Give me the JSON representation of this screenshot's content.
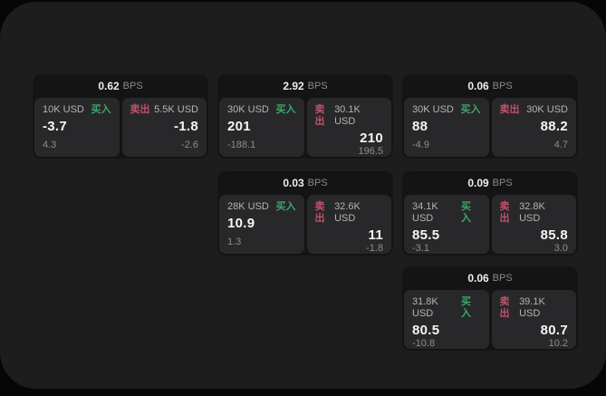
{
  "colors": {
    "buy-green": "#3fa56b",
    "sell-red": "#c25069"
  },
  "cards": [
    {
      "bps_value": "0.62",
      "bps_label": "BPS",
      "buy": {
        "amount": "10K USD",
        "tag": "买入",
        "value": "-3.7",
        "sub": "4.3"
      },
      "sell": {
        "tag": "卖出",
        "amount": "5.5K USD",
        "value": "-1.8",
        "sub": "-2.6"
      }
    },
    {
      "bps_value": "2.92",
      "bps_label": "BPS",
      "buy": {
        "amount": "30K USD",
        "tag": "买入",
        "value": "201",
        "sub": "-188.1"
      },
      "sell": {
        "tag": "卖出",
        "amount": "30.1K USD",
        "value": "210",
        "sub": "196.5"
      }
    },
    {
      "bps_value": "0.06",
      "bps_label": "BPS",
      "buy": {
        "amount": "30K USD",
        "tag": "买入",
        "value": "88",
        "sub": "-4.9"
      },
      "sell": {
        "tag": "卖出",
        "amount": "30K USD",
        "value": "88.2",
        "sub": "4.7"
      }
    },
    {
      "bps_value": "0.03",
      "bps_label": "BPS",
      "buy": {
        "amount": "28K USD",
        "tag": "买入",
        "value": "10.9",
        "sub": "1.3"
      },
      "sell": {
        "tag": "卖出",
        "amount": "32.6K USD",
        "value": "11",
        "sub": "-1.8"
      }
    },
    {
      "bps_value": "0.09",
      "bps_label": "BPS",
      "buy": {
        "amount": "34.1K USD",
        "tag": "买入",
        "value": "85.5",
        "sub": "-3.1"
      },
      "sell": {
        "tag": "卖出",
        "amount": "32.8K USD",
        "value": "85.8",
        "sub": "3.0"
      }
    },
    {
      "bps_value": "0.06",
      "bps_label": "BPS",
      "buy": {
        "amount": "31.8K USD",
        "tag": "买入",
        "value": "80.5",
        "sub": "-10.8"
      },
      "sell": {
        "tag": "卖出",
        "amount": "39.1K USD",
        "value": "80.7",
        "sub": "10.2"
      }
    }
  ]
}
